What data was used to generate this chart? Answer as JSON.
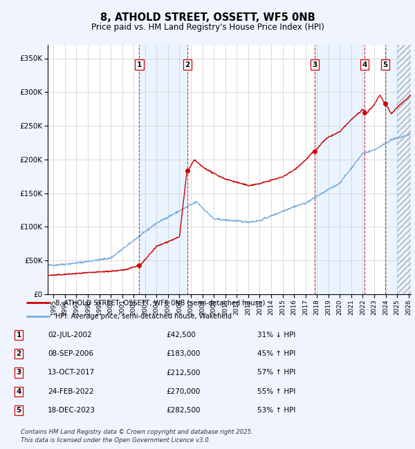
{
  "title": "8, ATHOLD STREET, OSSETT, WF5 0NB",
  "subtitle": "Price paid vs. HM Land Registry's House Price Index (HPI)",
  "footer": "Contains HM Land Registry data © Crown copyright and database right 2025.\nThis data is licensed under the Open Government Licence v3.0.",
  "legend_line1": "8, ATHOLD STREET, OSSETT, WF5 0NB (semi-detached house)",
  "legend_line2": "HPI: Average price, semi-detached house, Wakefield",
  "sale_color": "#cc0000",
  "hpi_color": "#7aaddb",
  "transactions": [
    {
      "num": 1,
      "date": "02-JUL-2002",
      "date_x": 2002.5,
      "price": 42500,
      "hpi_pct": "31% ↓ HPI"
    },
    {
      "num": 2,
      "date": "08-SEP-2006",
      "date_x": 2006.7,
      "price": 183000,
      "hpi_pct": "45% ↑ HPI"
    },
    {
      "num": 3,
      "date": "13-OCT-2017",
      "date_x": 2017.8,
      "price": 212500,
      "hpi_pct": "57% ↑ HPI"
    },
    {
      "num": 4,
      "date": "24-FEB-2022",
      "date_x": 2022.15,
      "price": 270000,
      "hpi_pct": "55% ↑ HPI"
    },
    {
      "num": 5,
      "date": "18-DEC-2023",
      "date_x": 2023.95,
      "price": 282500,
      "hpi_pct": "53% ↑ HPI"
    }
  ],
  "ylim": [
    0,
    370000
  ],
  "xlim": [
    1994.5,
    2026.2
  ],
  "yticks": [
    0,
    50000,
    100000,
    150000,
    200000,
    250000,
    300000,
    350000
  ],
  "ytick_labels": [
    "£0",
    "£50K",
    "£100K",
    "£150K",
    "£200K",
    "£250K",
    "£300K",
    "£350K"
  ],
  "xticks": [
    1995,
    1996,
    1997,
    1998,
    1999,
    2000,
    2001,
    2002,
    2003,
    2004,
    2005,
    2006,
    2007,
    2008,
    2009,
    2010,
    2011,
    2012,
    2013,
    2014,
    2015,
    2016,
    2017,
    2018,
    2019,
    2020,
    2021,
    2022,
    2023,
    2024,
    2025,
    2026
  ],
  "background_color": "#f0f4ff",
  "plot_bg": "#ffffff",
  "grid_color": "#cccccc",
  "shade_color": "#ddeeff"
}
